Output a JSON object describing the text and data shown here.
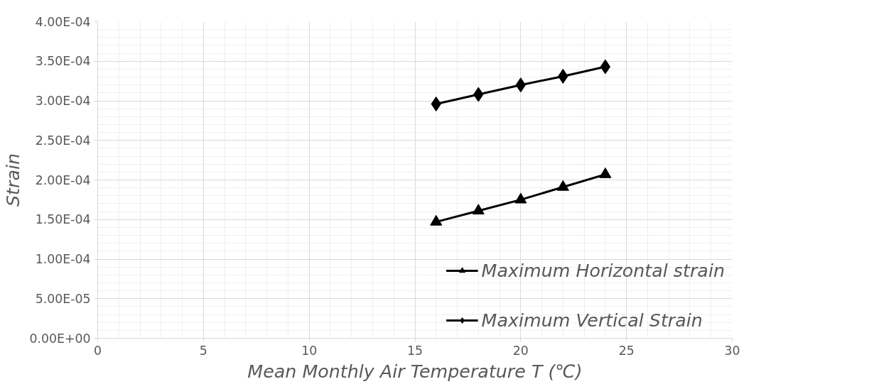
{
  "chart_data": {
    "type": "line",
    "xlabel": "Mean Monthly Air Temperature T (℃)",
    "ylabel": "Strain",
    "x": [
      16,
      18,
      20,
      22,
      24
    ],
    "series": [
      {
        "name": "Maximum Horizontal strain",
        "color": "#000000",
        "marker": "triangle",
        "values": [
          0.000147,
          0.000161,
          0.000175,
          0.000191,
          0.000207
        ]
      },
      {
        "name": "Maximum Vertical Strain",
        "color": "#000000",
        "marker": "diamond",
        "values": [
          0.000296,
          0.000308,
          0.00032,
          0.000331,
          0.000343
        ]
      }
    ],
    "xlim": [
      0,
      30
    ],
    "xticks": [
      0,
      5,
      10,
      15,
      20,
      25,
      30
    ],
    "ylim": [
      0,
      0.0004
    ],
    "yticks": [
      {
        "value": 0,
        "label": "0.00E+00"
      },
      {
        "value": 5e-05,
        "label": "5.00E-05"
      },
      {
        "value": 0.0001,
        "label": "1.00E-04"
      },
      {
        "value": 0.00015,
        "label": "1.50E-04"
      },
      {
        "value": 0.0002,
        "label": "2.00E-04"
      },
      {
        "value": 0.00025,
        "label": "2.50E-04"
      },
      {
        "value": 0.0003,
        "label": "3.00E-04"
      },
      {
        "value": 0.00035,
        "label": "3.50E-04"
      },
      {
        "value": 0.0004,
        "label": "4.00E-04"
      }
    ],
    "grid": true,
    "legend": "bottom right",
    "line_style": "solid"
  }
}
